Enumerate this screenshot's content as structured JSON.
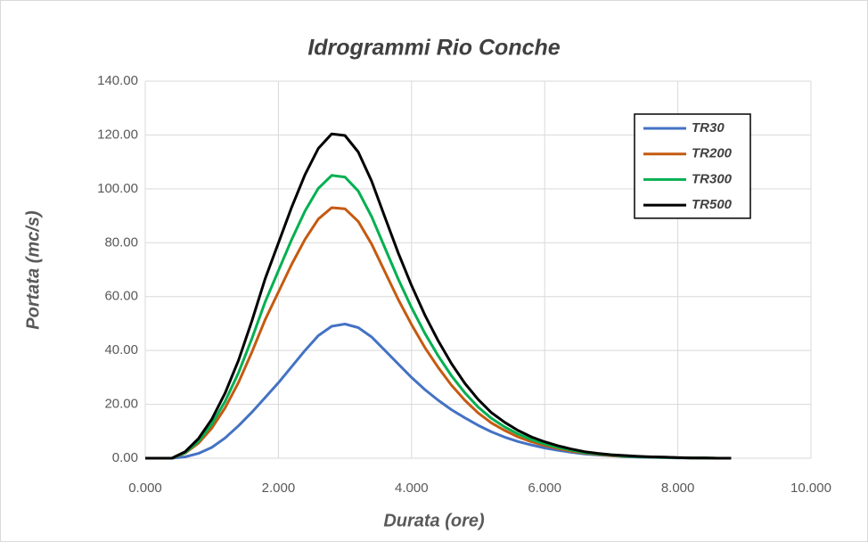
{
  "chart_data": {
    "type": "line",
    "title": "Idrogrammi Rio Conche",
    "x_label": "Durata (ore)",
    "y_label": "Portata (mc/s)",
    "x": [
      0,
      0.2,
      0.4,
      0.6,
      0.8,
      1.0,
      1.2,
      1.4,
      1.6,
      1.8,
      2.0,
      2.2,
      2.4,
      2.6,
      2.8,
      3.0,
      3.2,
      3.4,
      3.6,
      3.8,
      4.0,
      4.2,
      4.4,
      4.6,
      4.8,
      5.0,
      5.2,
      5.4,
      5.6,
      5.8,
      6.0,
      6.2,
      6.4,
      6.6,
      6.8,
      7.0,
      7.2,
      7.4,
      7.6,
      7.8,
      8.0,
      8.2,
      8.4,
      8.6,
      8.8
    ],
    "series": [
      {
        "name": "TR30",
        "color": "#4472c4",
        "values": [
          0,
          0,
          0,
          0.5,
          1.8,
          4,
          7.5,
          12,
          17,
          22.5,
          28,
          34,
          40,
          45.5,
          49,
          49.8,
          48.5,
          45,
          40,
          35,
          30,
          25.5,
          21.5,
          18,
          15,
          12.2,
          9.8,
          7.8,
          6.2,
          4.9,
          3.8,
          2.9,
          2.2,
          1.6,
          1.2,
          0.9,
          0.6,
          0.4,
          0.3,
          0.2,
          0.1,
          0.1,
          0,
          0,
          0
        ]
      },
      {
        "name": "TR200",
        "color": "#c55a11",
        "values": [
          0,
          0,
          0,
          1.9,
          5.6,
          11.2,
          18.7,
          28.1,
          39.3,
          51.4,
          61.7,
          72,
          81.3,
          88.8,
          93,
          92.6,
          87.9,
          79.5,
          69.2,
          58.9,
          49.6,
          41.1,
          33.7,
          27.1,
          21.5,
          16.8,
          13.1,
          10.3,
          7.9,
          6.1,
          4.7,
          3.6,
          2.6,
          1.9,
          1.4,
          1,
          0.7,
          0.6,
          0.4,
          0.3,
          0.2,
          0.1,
          0.1,
          0,
          0
        ]
      },
      {
        "name": "TR300",
        "color": "#00b050",
        "values": [
          0,
          0,
          0,
          2.1,
          6.3,
          12.7,
          21.1,
          31.7,
          44.3,
          58,
          69.6,
          81.2,
          91.8,
          100.2,
          105,
          104.4,
          99.2,
          89.7,
          78.1,
          66.5,
          55.9,
          46.4,
          38,
          30.6,
          24.3,
          19,
          14.8,
          11.6,
          9,
          6.9,
          5.3,
          4,
          3,
          2.1,
          1.6,
          1.2,
          0.8,
          0.6,
          0.4,
          0.3,
          0.2,
          0.1,
          0.1,
          0,
          0
        ]
      },
      {
        "name": "TR500",
        "color": "#000000",
        "values": [
          0,
          0,
          0,
          2.4,
          7.3,
          14.5,
          24.2,
          36.3,
          50.8,
          66.6,
          79.9,
          93.2,
          105.3,
          115,
          120.4,
          119.8,
          113.7,
          102.9,
          89.5,
          76.2,
          64.1,
          53.2,
          43.6,
          35.1,
          27.8,
          21.8,
          16.9,
          13.3,
          10.3,
          7.9,
          6.1,
          4.6,
          3.4,
          2.4,
          1.8,
          1.3,
          1,
          0.7,
          0.5,
          0.4,
          0.2,
          0.1,
          0.1,
          0,
          0
        ]
      }
    ],
    "xlim": [
      0,
      10
    ],
    "ylim": [
      0,
      140
    ],
    "xticks": [
      {
        "value": 0,
        "label": "0.000"
      },
      {
        "value": 2,
        "label": "2.000"
      },
      {
        "value": 4,
        "label": "4.000"
      },
      {
        "value": 6,
        "label": "6.000"
      },
      {
        "value": 8,
        "label": "8.000"
      },
      {
        "value": 10,
        "label": "10.000"
      }
    ],
    "yticks": [
      {
        "value": 0,
        "label": "0.00"
      },
      {
        "value": 20,
        "label": "20.00"
      },
      {
        "value": 40,
        "label": "40.00"
      },
      {
        "value": 60,
        "label": "60.00"
      },
      {
        "value": 80,
        "label": "80.00"
      },
      {
        "value": 100,
        "label": "100.00"
      },
      {
        "value": 120,
        "label": "120.00"
      },
      {
        "value": 140,
        "label": "140.00"
      }
    ],
    "grid": true,
    "legend": "upper right"
  }
}
